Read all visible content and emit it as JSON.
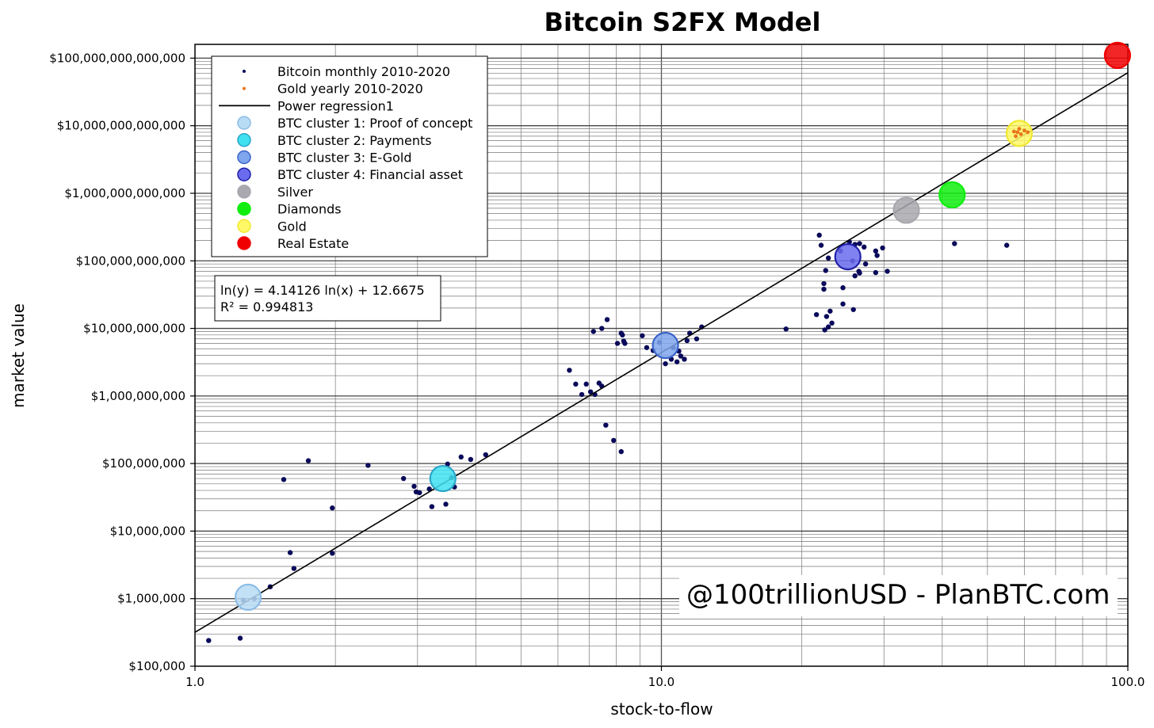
{
  "chart_data": {
    "type": "scatter",
    "title": "Bitcoin S2FX Model",
    "xlabel": "stock-to-flow",
    "ylabel": "market value",
    "x_scale": "log",
    "y_scale": "log",
    "xlim": [
      1.0,
      100.0
    ],
    "ylim": [
      100000,
      160000000000000
    ],
    "grid": true,
    "legend_placement": "top-left",
    "x_ticks": [
      {
        "value": 1,
        "label": "1.0"
      },
      {
        "value": 10,
        "label": "10.0"
      },
      {
        "value": 100,
        "label": "100.0"
      }
    ],
    "y_ticks": [
      {
        "value": 100000,
        "label": "$100,000"
      },
      {
        "value": 1000000,
        "label": "$1,000,000"
      },
      {
        "value": 10000000,
        "label": "$10,000,000"
      },
      {
        "value": 100000000,
        "label": "$100,000,000"
      },
      {
        "value": 1000000000,
        "label": "$1,000,000,000"
      },
      {
        "value": 10000000000,
        "label": "$10,000,000,000"
      },
      {
        "value": 100000000000,
        "label": "$100,000,000,000"
      },
      {
        "value": 1000000000000,
        "label": "$1,000,000,000,000"
      },
      {
        "value": 10000000000000,
        "label": "$10,000,000,000,000"
      },
      {
        "value": 100000000000000,
        "label": "$100,000,000,000,000"
      }
    ],
    "legend": [
      {
        "label": "Bitcoin monthly 2010-2020",
        "marker": "dot",
        "color": "#0a0a5a"
      },
      {
        "label": "Gold yearly 2010-2020",
        "marker": "dot",
        "color": "#e8751a"
      },
      {
        "label": "Power regression1",
        "marker": "line",
        "color": "#000000"
      },
      {
        "label": "BTC cluster 1: Proof of concept",
        "marker": "circle",
        "color": "#b9dcf5",
        "stroke": "#8cbce6"
      },
      {
        "label": "BTC cluster 2: Payments",
        "marker": "circle",
        "color": "#3fe0f0",
        "stroke": "#2aa6c8"
      },
      {
        "label": "BTC cluster 3: E-Gold",
        "marker": "circle",
        "color": "#7fa6ec",
        "stroke": "#3a62c8"
      },
      {
        "label": "BTC cluster 4: Financial asset",
        "marker": "circle",
        "color": "#6a6cf0",
        "stroke": "#2020a8"
      },
      {
        "label": "Silver",
        "marker": "circle",
        "color": "#a8a8ae",
        "stroke": "#a8a8ae"
      },
      {
        "label": "Diamonds",
        "marker": "circle",
        "color": "#10ee10",
        "stroke": "#10ee10"
      },
      {
        "label": "Gold",
        "marker": "circle",
        "color": "#fff868",
        "stroke": "#f0e830"
      },
      {
        "label": "Real Estate",
        "marker": "circle",
        "color": "#f00000",
        "stroke": "#f00000"
      }
    ],
    "equation": {
      "line1": "ln(y) = 4.14126 ln(x) + 12.6675",
      "line2": "R² = 0.994813"
    },
    "regression": {
      "a": 4.14126,
      "b": 12.6675
    },
    "clusters": [
      {
        "name": "BTC cluster 1: Proof of concept",
        "x": 1.3,
        "y": 1050000
      },
      {
        "name": "BTC cluster 2: Payments",
        "x": 3.4,
        "y": 60000000
      },
      {
        "name": "BTC cluster 3: E-Gold",
        "x": 10.2,
        "y": 5600000000
      },
      {
        "name": "BTC cluster 4: Financial asset",
        "x": 25.1,
        "y": 115000000000
      },
      {
        "name": "Silver",
        "x": 33.5,
        "y": 560000000000
      },
      {
        "name": "Diamonds",
        "x": 42.0,
        "y": 950000000000
      },
      {
        "name": "Gold",
        "x": 58.5,
        "y": 7700000000000
      },
      {
        "name": "Real Estate",
        "x": 95.0,
        "y": 110000000000000
      }
    ],
    "gold_yearly": [
      {
        "x": 57.5,
        "y": 7000000000000
      },
      {
        "x": 58.0,
        "y": 8000000000000
      },
      {
        "x": 59.0,
        "y": 7500000000000
      },
      {
        "x": 60.0,
        "y": 8500000000000
      },
      {
        "x": 58.5,
        "y": 9000000000000
      },
      {
        "x": 61.0,
        "y": 8000000000000
      },
      {
        "x": 57.0,
        "y": 8200000000000
      }
    ],
    "bitcoin_monthly": [
      {
        "x": 1.07,
        "y": 240000
      },
      {
        "x": 1.25,
        "y": 260000
      },
      {
        "x": 1.27,
        "y": 950000
      },
      {
        "x": 1.34,
        "y": 1000000
      },
      {
        "x": 1.45,
        "y": 1500000
      },
      {
        "x": 1.63,
        "y": 2800000
      },
      {
        "x": 1.6,
        "y": 4800000
      },
      {
        "x": 1.97,
        "y": 4700000
      },
      {
        "x": 1.97,
        "y": 22000000
      },
      {
        "x": 1.55,
        "y": 58000000
      },
      {
        "x": 1.75,
        "y": 110000000
      },
      {
        "x": 2.35,
        "y": 94000000
      },
      {
        "x": 2.8,
        "y": 60000000
      },
      {
        "x": 2.95,
        "y": 46000000
      },
      {
        "x": 2.98,
        "y": 38000000
      },
      {
        "x": 3.03,
        "y": 37000000
      },
      {
        "x": 3.18,
        "y": 42000000
      },
      {
        "x": 3.22,
        "y": 23000000
      },
      {
        "x": 3.45,
        "y": 25000000
      },
      {
        "x": 3.48,
        "y": 98000000
      },
      {
        "x": 3.55,
        "y": 62000000
      },
      {
        "x": 3.6,
        "y": 45000000
      },
      {
        "x": 3.72,
        "y": 125000000
      },
      {
        "x": 3.9,
        "y": 115000000
      },
      {
        "x": 4.2,
        "y": 135000000
      },
      {
        "x": 6.35,
        "y": 2400000000
      },
      {
        "x": 6.55,
        "y": 1500000000
      },
      {
        "x": 6.75,
        "y": 1050000000
      },
      {
        "x": 6.9,
        "y": 1500000000
      },
      {
        "x": 7.05,
        "y": 1150000000
      },
      {
        "x": 7.2,
        "y": 1050000000
      },
      {
        "x": 7.35,
        "y": 1550000000
      },
      {
        "x": 7.45,
        "y": 1400000000
      },
      {
        "x": 7.6,
        "y": 370000000
      },
      {
        "x": 7.9,
        "y": 220000000
      },
      {
        "x": 8.2,
        "y": 150000000
      },
      {
        "x": 7.15,
        "y": 9000000000
      },
      {
        "x": 7.45,
        "y": 10000000000
      },
      {
        "x": 7.65,
        "y": 13500000000
      },
      {
        "x": 8.05,
        "y": 6000000000
      },
      {
        "x": 8.25,
        "y": 8000000000
      },
      {
        "x": 8.2,
        "y": 8500000000
      },
      {
        "x": 8.3,
        "y": 6500000000
      },
      {
        "x": 8.35,
        "y": 6000000000
      },
      {
        "x": 9.1,
        "y": 7800000000
      },
      {
        "x": 9.3,
        "y": 5200000000
      },
      {
        "x": 9.6,
        "y": 4700000000
      },
      {
        "x": 9.9,
        "y": 6200000000
      },
      {
        "x": 10.2,
        "y": 3000000000
      },
      {
        "x": 10.5,
        "y": 3500000000
      },
      {
        "x": 10.8,
        "y": 3200000000
      },
      {
        "x": 11.0,
        "y": 3900000000
      },
      {
        "x": 11.2,
        "y": 3500000000
      },
      {
        "x": 11.35,
        "y": 6600000000
      },
      {
        "x": 11.5,
        "y": 8500000000
      },
      {
        "x": 11.9,
        "y": 7000000000
      },
      {
        "x": 12.2,
        "y": 10500000000
      },
      {
        "x": 10.6,
        "y": 5200000000
      },
      {
        "x": 10.9,
        "y": 4600000000
      },
      {
        "x": 18.5,
        "y": 9800000000
      },
      {
        "x": 21.5,
        "y": 16000000000
      },
      {
        "x": 22.4,
        "y": 9500000000
      },
      {
        "x": 22.6,
        "y": 15000000000
      },
      {
        "x": 23.0,
        "y": 18000000000
      },
      {
        "x": 23.2,
        "y": 12000000000
      },
      {
        "x": 22.8,
        "y": 10500000000
      },
      {
        "x": 24.5,
        "y": 23000000000
      },
      {
        "x": 25.8,
        "y": 19000000000
      },
      {
        "x": 22.3,
        "y": 38000000000
      },
      {
        "x": 22.3,
        "y": 46000000000
      },
      {
        "x": 24.5,
        "y": 40000000000
      },
      {
        "x": 22.5,
        "y": 72000000000
      },
      {
        "x": 26.0,
        "y": 60000000000
      },
      {
        "x": 26.5,
        "y": 70000000000
      },
      {
        "x": 26.6,
        "y": 66000000000
      },
      {
        "x": 27.4,
        "y": 90000000000
      },
      {
        "x": 28.8,
        "y": 67000000000
      },
      {
        "x": 30.5,
        "y": 70000000000
      },
      {
        "x": 22.0,
        "y": 170000000000
      },
      {
        "x": 21.8,
        "y": 240000000000
      },
      {
        "x": 22.8,
        "y": 110000000000
      },
      {
        "x": 25.3,
        "y": 190000000000
      },
      {
        "x": 26.0,
        "y": 175000000000
      },
      {
        "x": 26.6,
        "y": 180000000000
      },
      {
        "x": 27.2,
        "y": 160000000000
      },
      {
        "x": 28.8,
        "y": 140000000000
      },
      {
        "x": 29.0,
        "y": 120000000000
      },
      {
        "x": 29.8,
        "y": 155000000000
      },
      {
        "x": 24.2,
        "y": 140000000000
      },
      {
        "x": 25.7,
        "y": 100000000000
      },
      {
        "x": 42.5,
        "y": 180000000000
      },
      {
        "x": 55.0,
        "y": 170000000000
      }
    ]
  },
  "watermark": {
    "text": "@100trillionUSD  -  PlanBTC.com"
  }
}
